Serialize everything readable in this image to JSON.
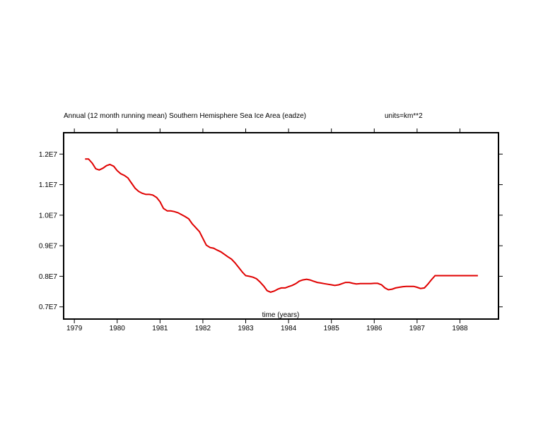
{
  "chart_data": {
    "type": "line",
    "title": "Annual (12 month running mean) Southern Hemisphere Sea Ice Area (eadze)",
    "units": "units=km**2",
    "xlabel": "time (years)",
    "ylabel": "",
    "xlim": [
      1978.75,
      1988.9
    ],
    "ylim": [
      6600000.0,
      12700000.0
    ],
    "x_ticks": [
      1979,
      1980,
      1981,
      1982,
      1983,
      1984,
      1985,
      1986,
      1987,
      1988
    ],
    "x_tick_labels": [
      "1979",
      "1980",
      "1981",
      "1982",
      "1983",
      "1984",
      "1985",
      "1986",
      "1987",
      "1988"
    ],
    "y_ticks": [
      7000000.0,
      8000000.0,
      9000000.0,
      10000000.0,
      11000000.0,
      12000000.0
    ],
    "y_tick_labels": [
      "0.7E7",
      "0.8E7",
      "0.9E7",
      "1.0E7",
      "1.1E7",
      "1.2E7"
    ],
    "grid": false,
    "line_color": "#e00000",
    "series": [
      {
        "x": [
          1979.25,
          1979.33,
          1979.42,
          1979.5,
          1979.58,
          1979.67,
          1979.75,
          1979.83,
          1979.92,
          1980.0,
          1980.08,
          1980.17,
          1980.25,
          1980.33,
          1980.42,
          1980.5,
          1980.58,
          1980.67,
          1980.75,
          1980.83,
          1980.92,
          1981.0,
          1981.08,
          1981.17,
          1981.25,
          1981.33,
          1981.42,
          1981.5,
          1981.58,
          1981.67,
          1981.75,
          1981.83,
          1981.92,
          1982.0,
          1982.08,
          1982.17,
          1982.25,
          1982.33,
          1982.42,
          1982.5,
          1982.58,
          1982.67,
          1982.75,
          1982.83,
          1982.92,
          1983.0,
          1983.08,
          1983.17,
          1983.25,
          1983.33,
          1983.42,
          1983.5,
          1983.58,
          1983.67,
          1983.75,
          1983.83,
          1983.92,
          1984.0,
          1984.08,
          1984.17,
          1984.25,
          1984.33,
          1984.42,
          1984.5,
          1984.58,
          1984.67,
          1984.75,
          1984.83,
          1984.92,
          1985.0,
          1985.08,
          1985.17,
          1985.25,
          1985.33,
          1985.42,
          1985.5,
          1985.58,
          1985.67,
          1985.75,
          1985.83,
          1985.92,
          1986.0,
          1986.08,
          1986.17,
          1986.25,
          1986.33,
          1986.42,
          1986.5,
          1986.58,
          1986.67,
          1986.75,
          1986.83,
          1986.92,
          1987.0,
          1987.08,
          1987.17,
          1987.25,
          1987.33,
          1987.42,
          1987.5,
          1987.58,
          1987.67,
          1987.75,
          1987.83,
          1987.92,
          1988.0,
          1988.08,
          1988.17,
          1988.25,
          1988.33,
          1988.42
        ],
        "values": [
          11840000.0,
          11840000.0,
          11700000.0,
          11520000.0,
          11480000.0,
          11540000.0,
          11620000.0,
          11660000.0,
          11600000.0,
          11460000.0,
          11360000.0,
          11300000.0,
          11220000.0,
          11060000.0,
          10880000.0,
          10780000.0,
          10720000.0,
          10680000.0,
          10680000.0,
          10660000.0,
          10580000.0,
          10440000.0,
          10220000.0,
          10140000.0,
          10140000.0,
          10120000.0,
          10080000.0,
          10020000.0,
          9960000.0,
          9880000.0,
          9720000.0,
          9600000.0,
          9460000.0,
          9240000.0,
          9020000.0,
          8940000.0,
          8920000.0,
          8860000.0,
          8800000.0,
          8720000.0,
          8640000.0,
          8560000.0,
          8440000.0,
          8300000.0,
          8140000.0,
          8020000.0,
          8000000.0,
          7970000.0,
          7920000.0,
          7820000.0,
          7680000.0,
          7530000.0,
          7480000.0,
          7520000.0,
          7580000.0,
          7620000.0,
          7620000.0,
          7660000.0,
          7700000.0,
          7760000.0,
          7840000.0,
          7880000.0,
          7900000.0,
          7880000.0,
          7840000.0,
          7800000.0,
          7780000.0,
          7760000.0,
          7740000.0,
          7720000.0,
          7700000.0,
          7720000.0,
          7760000.0,
          7800000.0,
          7800000.0,
          7770000.0,
          7750000.0,
          7760000.0,
          7760000.0,
          7760000.0,
          7760000.0,
          7770000.0,
          7770000.0,
          7720000.0,
          7620000.0,
          7560000.0,
          7580000.0,
          7620000.0,
          7640000.0,
          7660000.0,
          7670000.0,
          7670000.0,
          7670000.0,
          7640000.0,
          7600000.0,
          7620000.0,
          7740000.0,
          7880000.0,
          8020000.0,
          8020000.0,
          8020000.0,
          8020000.0,
          8020000.0,
          8020000.0,
          8020000.0,
          8020000.0,
          8020000.0,
          8020000.0,
          8020000.0,
          8020000.0,
          8020000.0
        ]
      }
    ]
  }
}
